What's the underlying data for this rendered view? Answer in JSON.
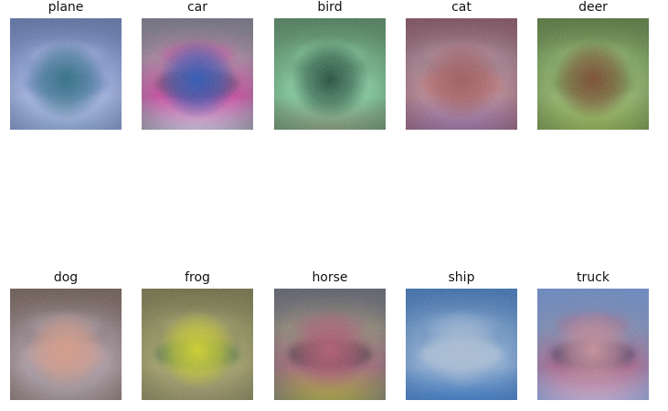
{
  "panels": [
    {
      "title": "plane",
      "base": "#7f93c8",
      "center": "#2f6f86",
      "band": "#9fb0dc",
      "border": "#5c6f9e",
      "bottom": "#8aa2c9",
      "accent": "#6a86c0"
    },
    {
      "title": "car",
      "base": "#a5849e",
      "center": "#2d57b6",
      "band": "#c64fa0",
      "border": "#6e6f7d",
      "bottom": "#c9b9d8",
      "accent": "#5c3b63"
    },
    {
      "title": "bird",
      "base": "#6aa57e",
      "center": "#244f3d",
      "band": "#7fc59a",
      "border": "#4e7a5a",
      "bottom": "#7c8f72",
      "accent": "#8ecfa6"
    },
    {
      "title": "cat",
      "base": "#9d7b89",
      "center": "#a05c5e",
      "band": "#b48593",
      "border": "#7b4f5d",
      "bottom": "#8f6aa0",
      "accent": "#c87a79"
    },
    {
      "title": "deer",
      "base": "#7aa05d",
      "center": "#7a4a2f",
      "band": "#8fb06a",
      "border": "#55733f",
      "bottom": "#8aa64e",
      "accent": "#6f8f4b"
    },
    {
      "title": "dog",
      "base": "#8f7f85",
      "center": "#d89b86",
      "band": "#a99aa2",
      "border": "#6b5a52",
      "bottom": "#9c8f96",
      "accent": "#c4a2a6"
    },
    {
      "title": "frog",
      "base": "#8f8e5e",
      "center": "#cfd12b",
      "band": "#a2a06a",
      "border": "#6f6e48",
      "bottom": "#8e8a63",
      "accent": "#3f6e45"
    },
    {
      "title": "horse",
      "base": "#8e8777",
      "center": "#b05a72",
      "band": "#a06b79",
      "border": "#5c5e6c",
      "bottom": "#a8a23a",
      "accent": "#3b2a3c"
    },
    {
      "title": "ship",
      "base": "#6e95c2",
      "center": "#a9bdd5",
      "band": "#8aaad1",
      "border": "#3f6ea9",
      "bottom": "#3a76bd",
      "accent": "#c3d1e2"
    },
    {
      "title": "truck",
      "base": "#7d8bb0",
      "center": "#c6909b",
      "band": "#a76b8f",
      "border": "#6a86be",
      "bottom": "#c8a8c8",
      "accent": "#3b2a4f"
    }
  ]
}
